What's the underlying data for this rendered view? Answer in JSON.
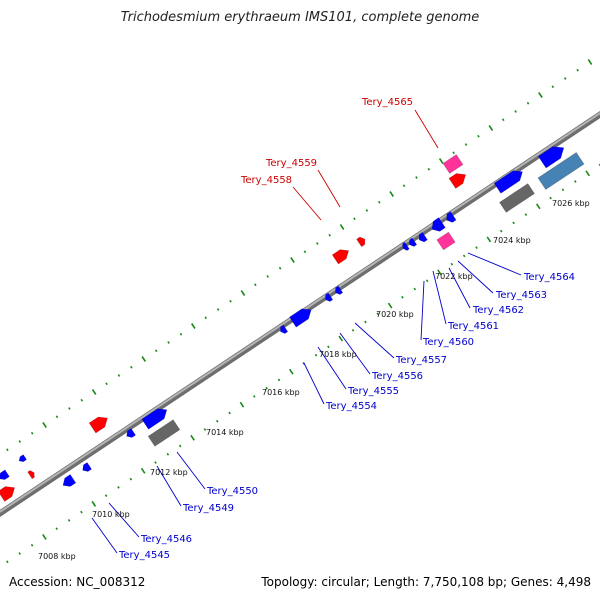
{
  "title": "Trichodesmium erythraeum IMS101, complete genome",
  "footer": {
    "accession": "Accession: NC_008312",
    "stats": "Topology: circular; Length: 7,750,108 bp; Genes: 4,498"
  },
  "colors": {
    "backbone": "#8c8c8c",
    "tick": "#1a8a1a",
    "forward_gene": "#ff0000",
    "reverse_gene": "#0000ff",
    "rna_gene": "#ff3399",
    "other_gene": "#666666",
    "light_blue_gene": "#4682b4",
    "upper_label": "#cc0000",
    "lower_label": "#0000cc"
  },
  "kbp_labels": [
    "7008 kbp",
    "7010 kbp",
    "7012 kbp",
    "7014 kbp",
    "7016 kbp",
    "7018 kbp",
    "7020 kbp",
    "7022 kbp",
    "7024 kbp",
    "7026 kbp"
  ],
  "upper_gene_labels": [
    "Tery_4565",
    "Tery_4559",
    "Tery_4558"
  ],
  "lower_gene_labels": [
    "Tery_4564",
    "Tery_4563",
    "Tery_4562",
    "Tery_4561",
    "Tery_4560",
    "Tery_4557",
    "Tery_4556",
    "Tery_4555",
    "Tery_4554",
    "Tery_4550",
    "Tery_4549",
    "Tery_4546",
    "Tery_4545"
  ]
}
